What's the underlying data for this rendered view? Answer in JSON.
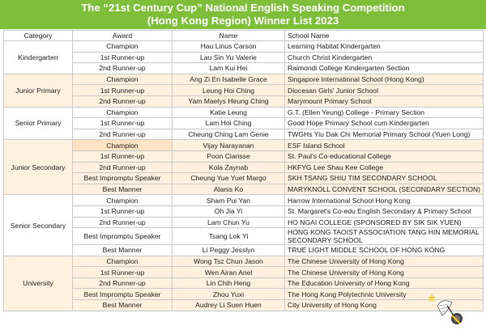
{
  "header": {
    "line1": "The “21st Century Cup” National English Speaking Competition",
    "line2": "(Hong Kong Region) Winner List 2023"
  },
  "columns": [
    "Category",
    "Award",
    "Name",
    "School Name"
  ],
  "groups": [
    {
      "category": "Kindergarten",
      "rows": [
        {
          "award": "Champion",
          "name": "Hau Linus Carson",
          "school": "Learning Habitat Kindergarten"
        },
        {
          "award": "1st Runner-up",
          "name": "Lau Sin Yu Valerie",
          "school": "Church Christ Kindergarten"
        },
        {
          "award": "2nd Runner-up",
          "name": "Lam Kui Hei",
          "school": "Raimondi College Kindergarten Section"
        }
      ]
    },
    {
      "category": "Junior Primary",
      "rows": [
        {
          "award": "Champion",
          "name": "Ang Zi En Isabelle Grace",
          "school": "Singapore International School (Hong Kong)"
        },
        {
          "award": "1st Runner-up",
          "name": "Leung Hoi Ching",
          "school": "Diocesan Girls' Junior School"
        },
        {
          "award": "2nd Runner-up",
          "name": "Yam Maelys Heung Ching",
          "school": "Marymount Primary School"
        }
      ]
    },
    {
      "category": "Senior Primary",
      "rows": [
        {
          "award": "Champion",
          "name": "Katie Leung",
          "school": "G.T. (Ellen Yeung) College - Primary Section"
        },
        {
          "award": "1st Runner-up",
          "name": "Lam Hoi Ching",
          "school": "Good Hope Primary School cum Kindergarten"
        },
        {
          "award": "2nd Runner-up",
          "name": "Cheung Ching Lam Genie",
          "school": "TWGHs Yiu Dak Chi Memorial Primary School (Yuen Long)"
        }
      ]
    },
    {
      "category": "Junior Secondary",
      "rows": [
        {
          "award": "Champion",
          "name": "Vijay Narayanan",
          "school": "ESF Island School"
        },
        {
          "award": "1st Runner-up",
          "name": "Poon Clarisse",
          "school": "St. Paul's Co-educational College"
        },
        {
          "award": "2nd Runner-up",
          "name": "Kola Zaynab",
          "school": "HKFYG Lee Shau Kee College"
        },
        {
          "award": "Best Impromptu Speaker",
          "name": "Cheung Yue Yuet Margo",
          "school": "SKH TSANG SHIU TIM SECONDARY SCHOOL"
        },
        {
          "award": "Best Manner",
          "name": "Alanis Ko",
          "school": "MARYKNOLL CONVENT SCHOOL (SECONDARY SECTION)"
        }
      ]
    },
    {
      "category": "Senior Secondary",
      "rows": [
        {
          "award": "Champion",
          "name": "Sham Pui Yan",
          "school": "Harrow International School Hong Kong"
        },
        {
          "award": "1st Runner-up",
          "name": "Oh Jia Yi",
          "school": "St. Margaret's Co-edu English Secondary & Primary School"
        },
        {
          "award": "2nd Runner-up",
          "name": "Lam Chun Yu",
          "school": "HO NGAI COLLEGE (SPONSORED BY SIK SIK YUEN)"
        },
        {
          "award": "Best Impromptu Speaker",
          "name": "Tsang Lok Yi",
          "school": "HONG KONG TAOIST ASSOCIATION TANG HIN MEMORIAL SECONDARY SCHOOL"
        },
        {
          "award": "Best Manner",
          "name": "Li Peggy Jesslyn",
          "school": "TRUE LIGHT MIDDLE SCHOOL OF HONG KONG"
        }
      ]
    },
    {
      "category": "University",
      "rows": [
        {
          "award": "Champion",
          "name": "Wong Tsz Chun Jason",
          "school": "The Chinese University of Hong Kong"
        },
        {
          "award": "1st Runner-up",
          "name": "Wen Airan Ariel",
          "school": "The Chinese University of Hong Kong"
        },
        {
          "award": "2nd Runner-up",
          "name": "Lin Chih Heng",
          "school": "The Education University of Hong Kong"
        },
        {
          "award": "Best Impromptu Speaker",
          "name": "Zhou Yuxi",
          "school": "The Hong Kong Polytechnic University"
        },
        {
          "award": "Best Manner",
          "name": "Audrey Li Suen Huen",
          "school": "City University of Hong Kong"
        }
      ]
    }
  ],
  "colors": {
    "header_bg": "#7ebf3a",
    "band_a": "#ffffff",
    "band_b": "#fff1de",
    "category_highlight": "#ffe3c2"
  }
}
